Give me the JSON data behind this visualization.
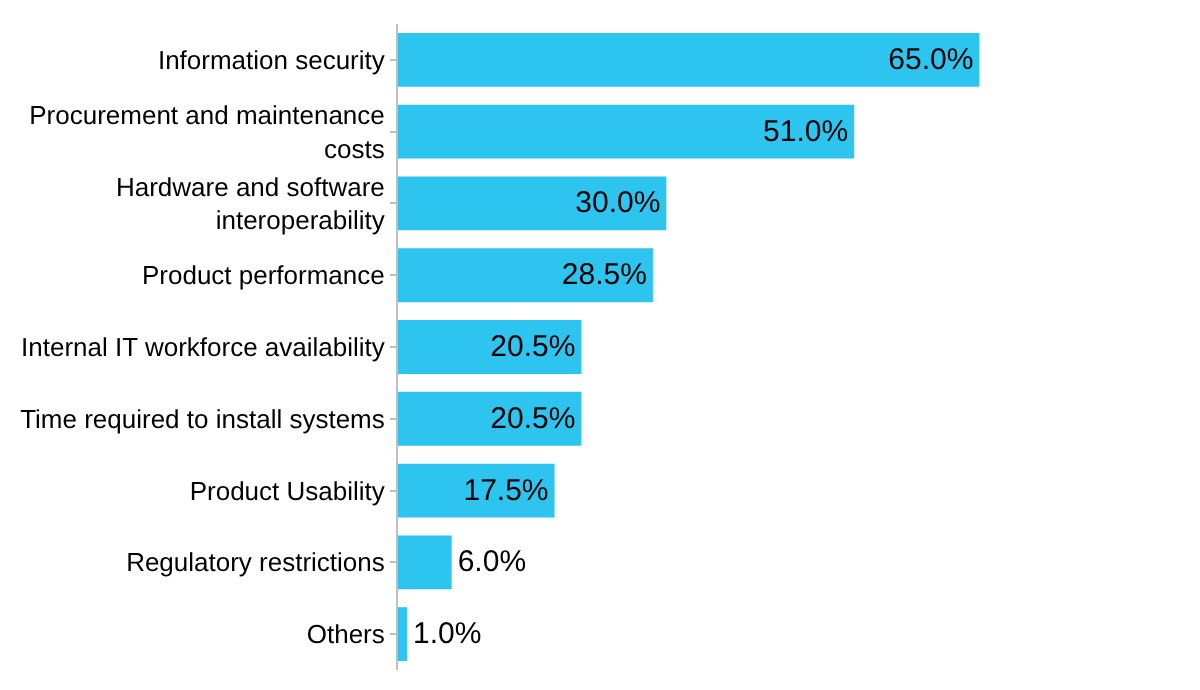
{
  "chart_data": {
    "type": "bar",
    "orientation": "horizontal",
    "categories": [
      "Information security",
      "Procurement and maintenance\ncosts",
      "Hardware and software\ninteroperability",
      "Product performance",
      "Internal IT workforce availability",
      "Time required to install systems",
      "Product Usability",
      "Regulatory restrictions",
      "Others"
    ],
    "values": [
      65.0,
      51.0,
      30.0,
      28.5,
      20.5,
      20.5,
      17.5,
      6.0,
      1.0
    ],
    "value_labels": [
      "65.0%",
      "51.0%",
      "30.0%",
      "28.5%",
      "20.5%",
      "20.5%",
      "17.5%",
      "6.0%",
      "1.0%"
    ],
    "color": "#2ec4f0",
    "grid": false,
    "legend": false
  }
}
